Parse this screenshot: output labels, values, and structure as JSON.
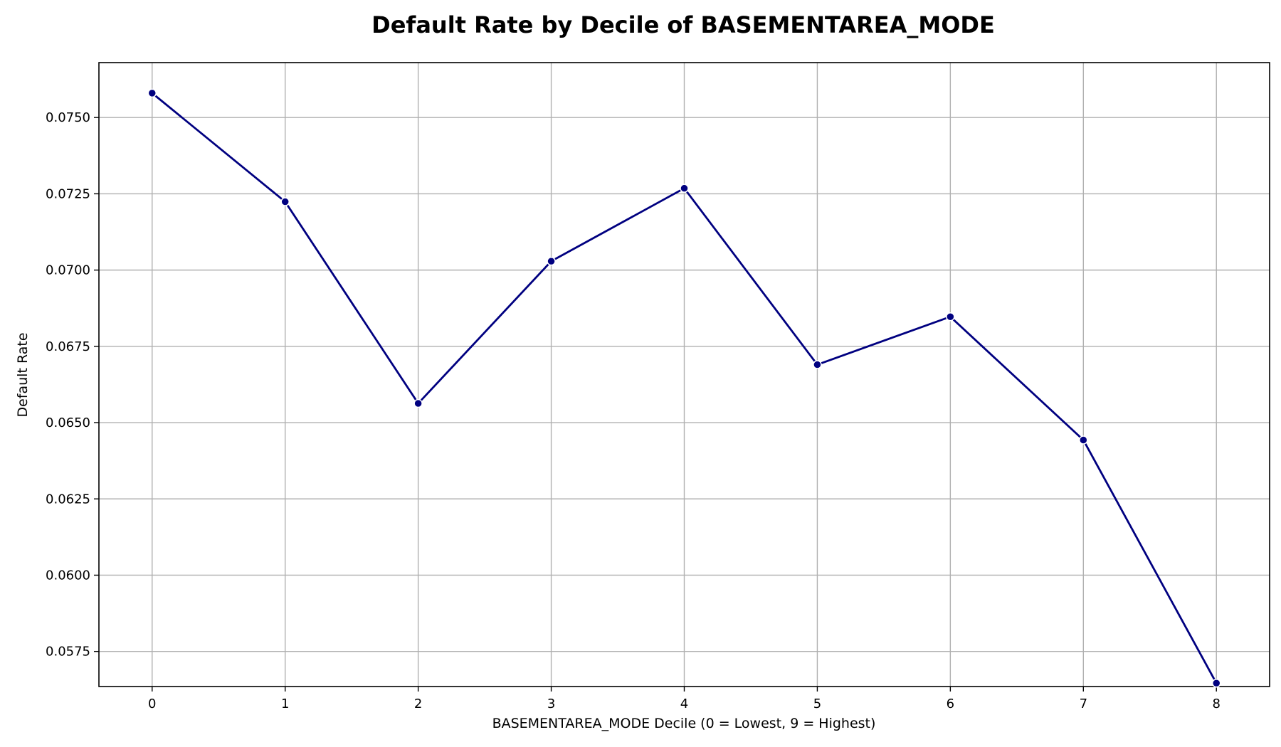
{
  "chart_data": {
    "type": "line",
    "title": "Default Rate by Decile of BASEMENTAREA_MODE",
    "xlabel": "BASEMENTAREA_MODE Decile (0 = Lowest, 9 = Highest)",
    "ylabel": "Default Rate",
    "x": [
      0,
      1,
      2,
      3,
      4,
      5,
      6,
      7,
      8
    ],
    "x_tick_labels": [
      "0",
      "1",
      "2",
      "3",
      "4",
      "5",
      "6",
      "7",
      "8"
    ],
    "xlim": [
      -0.4,
      8.4
    ],
    "ylim": [
      0.05635,
      0.0768
    ],
    "y_ticks": [
      0.0575,
      0.06,
      0.0625,
      0.065,
      0.0675,
      0.07,
      0.0725,
      0.075
    ],
    "y_tick_labels": [
      "0.0575",
      "0.0600",
      "0.0625",
      "0.0650",
      "0.0675",
      "0.0700",
      "0.0725",
      "0.0750"
    ],
    "series": [
      {
        "values": [
          0.0758,
          0.07224,
          0.06563,
          0.07029,
          0.07268,
          0.0669,
          0.06847,
          0.06443,
          0.05646
        ],
        "color": "#000080",
        "marker": "circle"
      }
    ],
    "grid": true,
    "legend": "none"
  }
}
